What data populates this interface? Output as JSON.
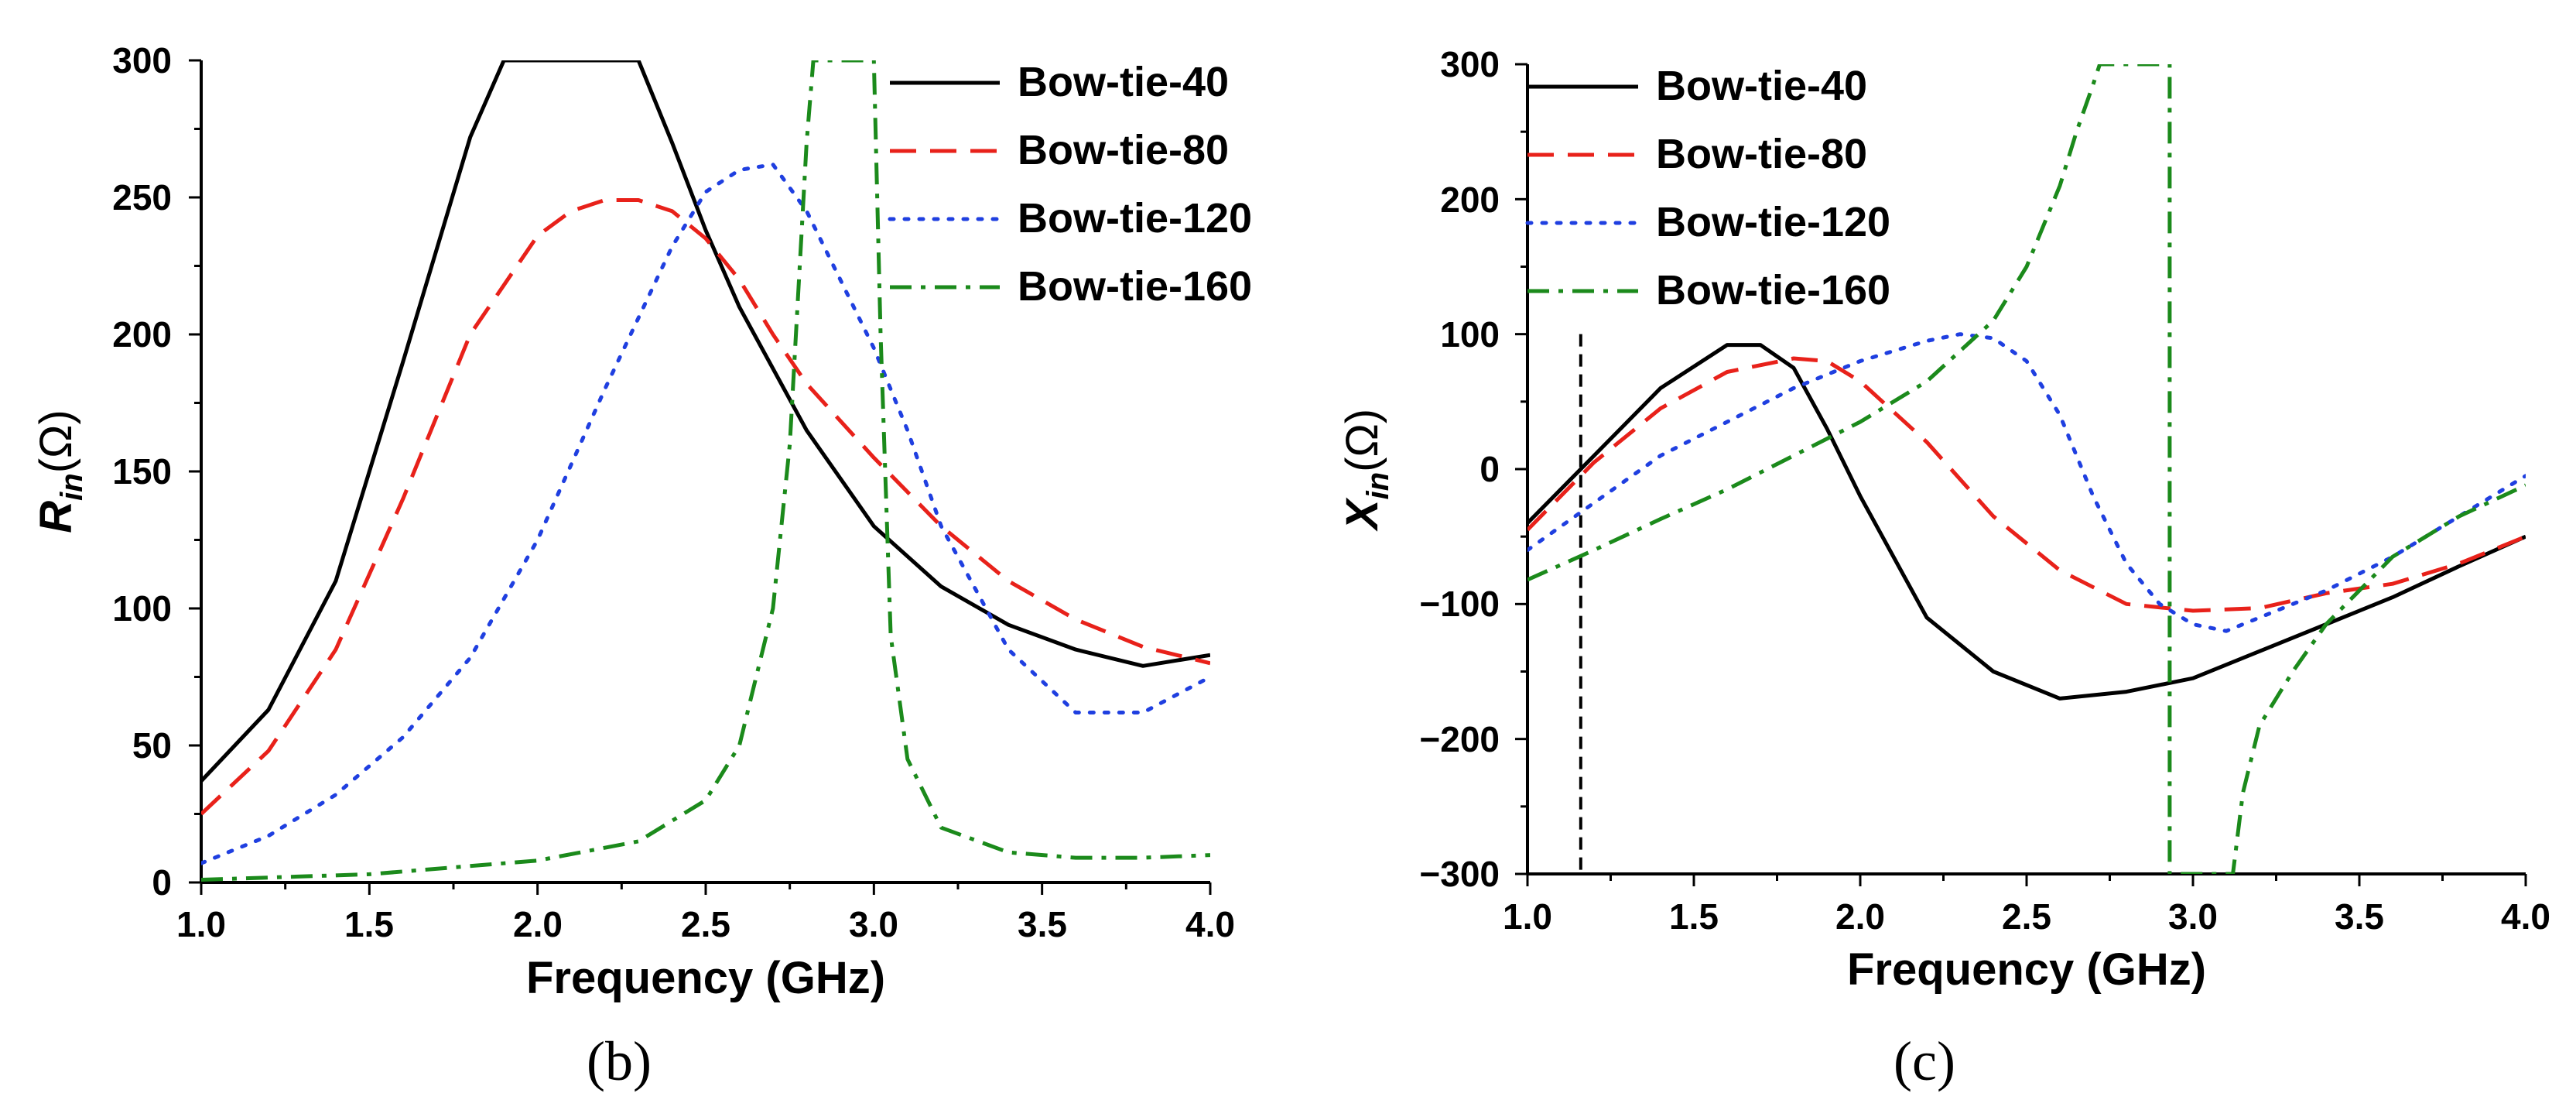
{
  "chart_data": [
    {
      "type": "line",
      "caption": "(b)",
      "xlabel": "Frequency (GHz)",
      "ylabel": "R",
      "ylabel_sub": "in",
      "ylabel_unit": "(Ω)",
      "xlim": [
        1.0,
        4.0
      ],
      "ylim": [
        0,
        300
      ],
      "xticks": [
        "1.0",
        "1.5",
        "2.0",
        "2.5",
        "3.0",
        "3.5",
        "4.0"
      ],
      "yticks": [
        "0",
        "50",
        "100",
        "150",
        "200",
        "250",
        "300"
      ],
      "legend_position": "top-right",
      "series": [
        {
          "name": "Bow-tie-40",
          "color": "#000000",
          "dash": "solid",
          "x": [
            1.0,
            1.2,
            1.4,
            1.6,
            1.8,
            1.9,
            2.3,
            2.4,
            2.5,
            2.6,
            2.8,
            3.0,
            3.2,
            3.4,
            3.6,
            3.8,
            4.0
          ],
          "y": [
            37,
            63,
            110,
            190,
            272,
            300,
            300,
            270,
            238,
            210,
            165,
            130,
            108,
            94,
            85,
            79,
            83
          ]
        },
        {
          "name": "Bow-tie-80",
          "color": "#e8211a",
          "dash": "long-dash",
          "x": [
            1.0,
            1.2,
            1.4,
            1.6,
            1.8,
            2.0,
            2.1,
            2.2,
            2.3,
            2.4,
            2.5,
            2.6,
            2.7,
            2.8,
            3.0,
            3.2,
            3.4,
            3.6,
            3.8,
            4.0
          ],
          "y": [
            25,
            48,
            85,
            140,
            200,
            236,
            245,
            249,
            249,
            245,
            235,
            220,
            200,
            182,
            155,
            130,
            110,
            96,
            86,
            80
          ]
        },
        {
          "name": "Bow-tie-120",
          "color": "#1f3fe0",
          "dash": "dotted",
          "x": [
            1.0,
            1.2,
            1.4,
            1.6,
            1.8,
            2.0,
            2.2,
            2.4,
            2.5,
            2.6,
            2.7,
            2.8,
            2.9,
            3.0,
            3.1,
            3.2,
            3.4,
            3.6,
            3.8,
            4.0
          ],
          "y": [
            7,
            17,
            32,
            53,
            82,
            125,
            180,
            232,
            252,
            260,
            262,
            245,
            220,
            195,
            165,
            130,
            85,
            62,
            62,
            75
          ]
        },
        {
          "name": "Bow-tie-160",
          "color": "#1b8a1b",
          "dash": "dash-dot",
          "x": [
            1.0,
            1.5,
            2.0,
            2.3,
            2.5,
            2.6,
            2.7,
            2.75,
            2.8,
            2.82,
            3.0,
            3.02,
            3.05,
            3.1,
            3.2,
            3.4,
            3.6,
            3.8,
            4.0
          ],
          "y": [
            1,
            3,
            8,
            15,
            30,
            50,
            100,
            160,
            270,
            300,
            300,
            200,
            90,
            45,
            20,
            11,
            9,
            9,
            10
          ]
        }
      ]
    },
    {
      "type": "line",
      "caption": "(c)",
      "xlabel": "Frequency (GHz)",
      "ylabel": "X",
      "ylabel_sub": "in",
      "ylabel_unit": "(Ω)",
      "xlim": [
        1.0,
        4.0
      ],
      "ylim": [
        -300,
        300
      ],
      "xticks": [
        "1.0",
        "1.5",
        "2.0",
        "2.5",
        "3.0",
        "3.5",
        "4.0"
      ],
      "yticks": [
        "−300",
        "−200",
        "−100",
        "0",
        "100",
        "200",
        "300"
      ],
      "legend_position": "top-left",
      "marker_x": 1.16,
      "series": [
        {
          "name": "Bow-tie-40",
          "color": "#000000",
          "dash": "solid",
          "x": [
            1.0,
            1.2,
            1.4,
            1.6,
            1.7,
            1.8,
            1.9,
            2.0,
            2.2,
            2.4,
            2.6,
            2.8,
            3.0,
            3.2,
            3.4,
            3.6,
            3.8,
            4.0
          ],
          "y": [
            -40,
            10,
            60,
            92,
            92,
            75,
            30,
            -20,
            -110,
            -150,
            -170,
            -165,
            -155,
            -135,
            -115,
            -95,
            -72,
            -50
          ]
        },
        {
          "name": "Bow-tie-80",
          "color": "#e8211a",
          "dash": "long-dash",
          "x": [
            1.0,
            1.2,
            1.4,
            1.6,
            1.8,
            1.9,
            2.0,
            2.2,
            2.4,
            2.6,
            2.8,
            3.0,
            3.2,
            3.4,
            3.6,
            3.8,
            4.0
          ],
          "y": [
            -45,
            5,
            45,
            72,
            82,
            80,
            65,
            20,
            -35,
            -75,
            -100,
            -105,
            -103,
            -92,
            -85,
            -70,
            -50
          ]
        },
        {
          "name": "Bow-tie-120",
          "color": "#1f3fe0",
          "dash": "dotted",
          "x": [
            1.0,
            1.2,
            1.4,
            1.6,
            1.8,
            2.0,
            2.2,
            2.3,
            2.4,
            2.5,
            2.6,
            2.7,
            2.8,
            2.9,
            3.0,
            3.1,
            3.2,
            3.4,
            3.6,
            3.8,
            4.0
          ],
          "y": [
            -60,
            -25,
            10,
            35,
            60,
            80,
            95,
            100,
            97,
            80,
            40,
            -20,
            -70,
            -100,
            -115,
            -120,
            -110,
            -90,
            -65,
            -35,
            -5
          ]
        },
        {
          "name": "Bow-tie-160",
          "color": "#1b8a1b",
          "dash": "dash-dot",
          "x": [
            1.0,
            1.2,
            1.4,
            1.6,
            1.8,
            2.0,
            2.2,
            2.4,
            2.5,
            2.6,
            2.65,
            2.7,
            2.72,
            2.93,
            2.93,
            3.12,
            3.15,
            3.2,
            3.3,
            3.4,
            3.6,
            3.8,
            4.0
          ],
          "y": [
            -82,
            -60,
            -37,
            -15,
            10,
            35,
            65,
            110,
            150,
            210,
            250,
            285,
            300,
            300,
            -300,
            -300,
            -240,
            -190,
            -150,
            -115,
            -65,
            -35,
            -12
          ]
        }
      ]
    }
  ]
}
